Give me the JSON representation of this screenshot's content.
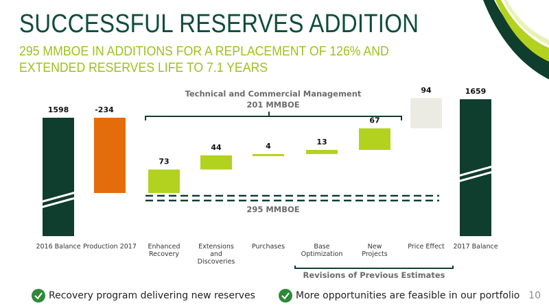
{
  "slide": {
    "title": "SUCCESSFUL RESERVES ADDITION",
    "subtitle_line1": "295 MMBOE IN ADDITIONS FOR A REPLACEMENT OF 126% AND",
    "subtitle_line2": "EXTENDED RESERVES LIFE TO 7.1 YEARS",
    "page_number": "10"
  },
  "chart_data": {
    "type": "waterfall",
    "categories": [
      "2016 Balance",
      "Production 2017",
      "Enhanced Recovery",
      "Extensions and Discoveries",
      "Purchases",
      "Base Optimization",
      "New Projects",
      "Price Effect",
      "2017 Balance"
    ],
    "category_lines": [
      [
        "2016 Balance"
      ],
      [
        "Production 2017"
      ],
      [
        "Enhanced",
        "Recovery"
      ],
      [
        "Extensions",
        "and",
        "Discoveries"
      ],
      [
        "Purchases"
      ],
      [
        "Base",
        "Optimization"
      ],
      [
        "New",
        "Projects"
      ],
      [
        "Price Effect"
      ],
      [
        "2017 Balance"
      ]
    ],
    "values": [
      1598,
      -234,
      73,
      44,
      4,
      13,
      67,
      94,
      1659
    ],
    "value_labels": [
      "1598",
      "-234",
      "73",
      "44",
      "4",
      "13",
      "67",
      "94",
      "1659"
    ],
    "kinds": [
      "total",
      "decrease",
      "increase",
      "increase",
      "increase",
      "increase",
      "increase",
      "increase",
      "total"
    ],
    "colors": {
      "total": "#0f3d2e",
      "decrease": "#e46c0a",
      "increase": "#b3d11f",
      "price": "#ecebe3"
    },
    "annotations": {
      "management_line1": "Technical and Commercial Management",
      "management_line2": "201 MMBOE",
      "additions_label": "295 MMBOE",
      "revisions_label": "Revisions of Previous Estimates"
    }
  },
  "notes": [
    {
      "text": "Recovery program delivering new reserves",
      "icon": "check-icon"
    },
    {
      "text": "More opportunities are feasible in our portfolio",
      "icon": "check-icon"
    }
  ]
}
